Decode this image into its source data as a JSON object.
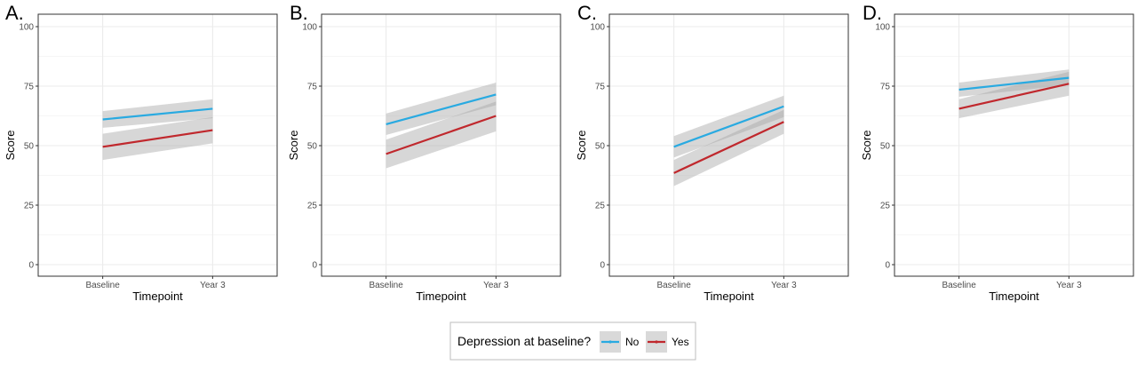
{
  "chart_data": [
    {
      "type": "line",
      "panel_label": "A.",
      "categories": [
        "Baseline",
        "Year 3"
      ],
      "xlabel": "Timepoint",
      "ylabel": "Score",
      "ylim": [
        0,
        100
      ],
      "yticks": [
        0,
        25,
        50,
        75,
        100
      ],
      "series": [
        {
          "name": "No",
          "values": [
            61,
            65.5
          ],
          "ci_low": [
            57.5,
            61.5
          ],
          "ci_high": [
            64.5,
            69.5
          ]
        },
        {
          "name": "Yes",
          "values": [
            49.5,
            56.5
          ],
          "ci_low": [
            44,
            51
          ],
          "ci_high": [
            55,
            62
          ]
        }
      ]
    },
    {
      "type": "line",
      "panel_label": "B.",
      "categories": [
        "Baseline",
        "Year 3"
      ],
      "xlabel": "Timepoint",
      "ylabel": "Score",
      "ylim": [
        0,
        100
      ],
      "yticks": [
        0,
        25,
        50,
        75,
        100
      ],
      "series": [
        {
          "name": "No",
          "values": [
            59,
            71.5
          ],
          "ci_low": [
            54.5,
            67
          ],
          "ci_high": [
            63.5,
            76.5
          ]
        },
        {
          "name": "Yes",
          "values": [
            46.5,
            62.5
          ],
          "ci_low": [
            40.5,
            56
          ],
          "ci_high": [
            52.5,
            68.5
          ]
        }
      ]
    },
    {
      "type": "line",
      "panel_label": "C.",
      "categories": [
        "Baseline",
        "Year 3"
      ],
      "xlabel": "Timepoint",
      "ylabel": "Score",
      "ylim": [
        0,
        100
      ],
      "yticks": [
        0,
        25,
        50,
        75,
        100
      ],
      "series": [
        {
          "name": "No",
          "values": [
            49.5,
            66.5
          ],
          "ci_low": [
            45,
            62
          ],
          "ci_high": [
            54,
            71
          ]
        },
        {
          "name": "Yes",
          "values": [
            38.5,
            60
          ],
          "ci_low": [
            33,
            55
          ],
          "ci_high": [
            44,
            65
          ]
        }
      ]
    },
    {
      "type": "line",
      "panel_label": "D.",
      "categories": [
        "Baseline",
        "Year 3"
      ],
      "xlabel": "Timepoint",
      "ylabel": "Score",
      "ylim": [
        0,
        100
      ],
      "yticks": [
        0,
        25,
        50,
        75,
        100
      ],
      "series": [
        {
          "name": "No",
          "values": [
            73.5,
            78.5
          ],
          "ci_low": [
            70.5,
            75.5
          ],
          "ci_high": [
            76.5,
            82
          ]
        },
        {
          "name": "Yes",
          "values": [
            65.5,
            76
          ],
          "ci_low": [
            61.5,
            71
          ],
          "ci_high": [
            69.5,
            81
          ]
        }
      ]
    }
  ],
  "legend": {
    "title": "Depression at baseline?",
    "placement": "bottom",
    "items": [
      {
        "label": "No",
        "color": "#29aae1"
      },
      {
        "label": "Yes",
        "color": "#c0282d"
      }
    ]
  },
  "colors": {
    "No": "#29aae1",
    "Yes": "#c0282d",
    "ribbon": "#a6a6a6",
    "grid": "#ebebeb",
    "panel_border": "#333333"
  }
}
